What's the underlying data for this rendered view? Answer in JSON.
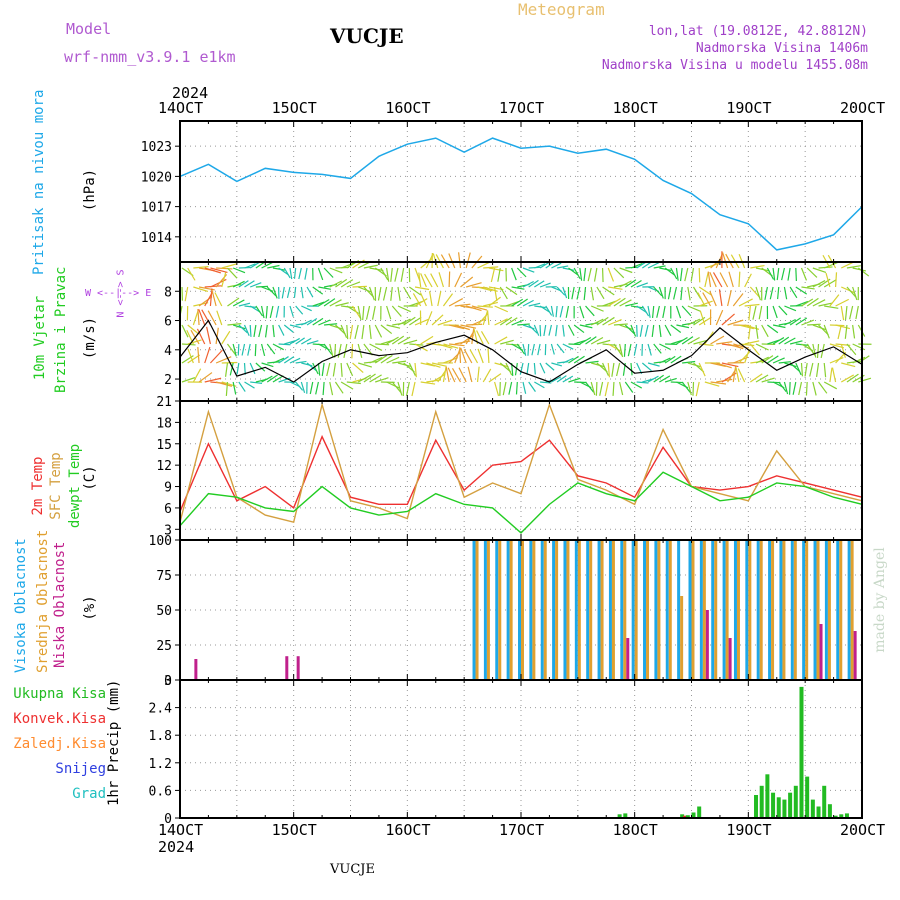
{
  "header": {
    "model_label": "Model",
    "model_name": "wrf-nmm_v3.9.1 e1km",
    "station_title": "VUCJE",
    "meteogram_label": "Meteogram",
    "lonlat": "lon,lat (19.0812E, 42.8812N)",
    "altitude": "Nadmorska Visina 1406m",
    "model_altitude": "Nadmorska Visina u modelu 1455.08m",
    "colors": {
      "model": "#b05ad0",
      "meteogram": "#e8c070",
      "info": "#a040c8"
    }
  },
  "time_axis": {
    "year": "2024",
    "dates": [
      "14OCT",
      "15OCT",
      "16OCT",
      "17OCT",
      "18OCT",
      "19OCT",
      "20OCT"
    ]
  },
  "footer": {
    "station": "VUCJE"
  },
  "watermark": "made by Angel",
  "panels": {
    "pressure": {
      "label": "Pritisak na nivou mora",
      "unit": "(hPa)",
      "color": "#1ea8e8"
    },
    "wind": {
      "label_a": "10m Vjetar",
      "label_b": "Brzina i Pravac",
      "unit": "(m/s)",
      "compass_ns": "N <--> S",
      "compass_we": "W <--|--> E",
      "color": "#22cc22",
      "compass_color": "#b040e0"
    },
    "temp": {
      "label_2m": "2m Temp",
      "label_sfc": "SFC Temp",
      "label_dew": "dewpt Temp",
      "unit": "(C)",
      "colors": {
        "t2m": "#ee3030",
        "sfc": "#d4a040",
        "dew": "#22cc22"
      }
    },
    "cloud": {
      "label_high": "Visoka Oblacnost",
      "label_mid": "Srednja Oblacnost",
      "label_low": "Niska Oblacnost",
      "unit": "(%)",
      "colors": {
        "high": "#1ea8e8",
        "mid": "#e0a030",
        "low": "#c0208c"
      }
    },
    "precip": {
      "unit": "1hr Precip (mm)",
      "legend": [
        {
          "label": "Ukupna Kisa",
          "color": "#22bb22"
        },
        {
          "label": "Konvek.Kisa",
          "color": "#ee3030"
        },
        {
          "label": "Zaledj.Kisa",
          "color": "#ff8c30"
        },
        {
          "label": "Snijeg",
          "color": "#3040e0"
        },
        {
          "label": "Grad",
          "color": "#20c0c0"
        }
      ]
    }
  },
  "chart_data": [
    {
      "type": "line",
      "title": "",
      "ylabel": "Pritisak na nivou mora (hPa)",
      "ylim": [
        1011.5,
        1025.5
      ],
      "yticks": [
        1014,
        1017,
        1020,
        1023
      ],
      "x_days": [
        0,
        0.25,
        0.5,
        0.75,
        1,
        1.25,
        1.5,
        1.75,
        2,
        2.25,
        2.5,
        2.75,
        3,
        3.25,
        3.5,
        3.75,
        4,
        4.25,
        4.5,
        4.75,
        5,
        5.25,
        5.5,
        5.75,
        6
      ],
      "series": [
        {
          "name": "",
          "values": [
            1020.0,
            1021.2,
            1019.5,
            1020.8,
            1020.4,
            1020.2,
            1019.8,
            1022.0,
            1023.2,
            1023.8,
            1022.4,
            1023.8,
            1022.8,
            1023.0,
            1022.3,
            1022.7,
            1021.7,
            1019.6,
            1018.3,
            1016.2,
            1015.3,
            1012.7,
            1013.3,
            1014.2,
            1017.0
          ]
        }
      ]
    },
    {
      "type": "line",
      "title": "",
      "ylabel": "10m Vjetar Brzina i Pravac (m/s)",
      "ylim": [
        0.5,
        10.0
      ],
      "yticks": [
        2,
        4,
        6,
        8
      ],
      "x_days": [
        0,
        0.25,
        0.5,
        0.75,
        1,
        1.25,
        1.5,
        1.75,
        2,
        2.25,
        2.5,
        2.75,
        3,
        3.25,
        3.5,
        3.75,
        4,
        4.25,
        4.5,
        4.75,
        5,
        5.25,
        5.5,
        5.75,
        6
      ],
      "series": [
        {
          "name": "",
          "values": [
            3.5,
            6.0,
            2.2,
            2.8,
            1.8,
            3.2,
            4.0,
            3.6,
            3.8,
            4.5,
            5.0,
            4.0,
            2.5,
            1.8,
            3.0,
            4.0,
            2.4,
            2.6,
            3.6,
            5.5,
            4.0,
            2.6,
            3.5,
            4.2,
            3.0
          ]
        }
      ]
    },
    {
      "type": "line",
      "title": "",
      "ylabel": "(C)",
      "ylim": [
        1.5,
        21.0
      ],
      "yticks": [
        3,
        6,
        9,
        12,
        15,
        18,
        21
      ],
      "x_days": [
        0,
        0.25,
        0.5,
        0.75,
        1,
        1.25,
        1.5,
        1.75,
        2,
        2.25,
        2.5,
        2.75,
        3,
        3.25,
        3.5,
        3.75,
        4,
        4.25,
        4.5,
        4.75,
        5,
        5.25,
        5.5,
        5.75,
        6
      ],
      "series": [
        {
          "name": "2m Temp",
          "values": [
            5.5,
            15.0,
            7.0,
            9.0,
            6.0,
            16.0,
            7.5,
            6.5,
            6.5,
            15.5,
            8.5,
            12.0,
            12.5,
            15.5,
            10.5,
            9.5,
            7.5,
            14.5,
            9.0,
            8.5,
            9.0,
            10.5,
            9.5,
            8.5,
            7.5
          ]
        },
        {
          "name": "SFC Temp",
          "values": [
            4.0,
            19.5,
            7.5,
            5.0,
            4.0,
            20.5,
            7.0,
            6.0,
            4.5,
            19.5,
            7.5,
            9.5,
            8.0,
            20.5,
            10.0,
            8.5,
            6.5,
            17.0,
            9.0,
            8.0,
            7.0,
            14.0,
            9.0,
            8.0,
            7.0
          ]
        },
        {
          "name": "dewpt Temp",
          "values": [
            3.5,
            8.0,
            7.5,
            6.0,
            5.5,
            9.0,
            6.0,
            5.0,
            5.5,
            8.0,
            6.5,
            6.0,
            2.5,
            6.5,
            9.5,
            8.0,
            7.0,
            11.0,
            9.0,
            7.0,
            7.5,
            9.5,
            9.0,
            7.5,
            6.5
          ]
        }
      ]
    },
    {
      "type": "bar",
      "title": "",
      "ylabel": "(%)",
      "ylim": [
        0,
        100
      ],
      "yticks": [
        0,
        25,
        50,
        75,
        100
      ],
      "x_days": [
        0.1,
        0.9,
        1.0,
        2.6,
        2.7,
        2.8,
        2.9,
        3.0,
        3.1,
        3.2,
        3.3,
        3.4,
        3.5,
        3.6,
        3.7,
        3.8,
        3.9,
        4.0,
        4.1,
        4.2,
        4.3,
        4.4,
        4.5,
        4.6,
        4.7,
        4.8,
        4.9,
        5.0,
        5.1,
        5.2,
        5.3,
        5.4,
        5.5,
        5.6,
        5.7,
        5.8,
        5.9
      ],
      "series": [
        {
          "name": "Visoka Oblacnost",
          "values": [
            0,
            0,
            0,
            100,
            100,
            100,
            100,
            100,
            100,
            100,
            100,
            100,
            100,
            100,
            100,
            100,
            100,
            100,
            100,
            100,
            100,
            100,
            100,
            100,
            100,
            100,
            100,
            100,
            100,
            100,
            100,
            100,
            100,
            100,
            100,
            100,
            100
          ]
        },
        {
          "name": "Srednja Oblacnost",
          "values": [
            0,
            0,
            0,
            100,
            100,
            100,
            100,
            100,
            100,
            100,
            100,
            100,
            100,
            100,
            100,
            100,
            100,
            100,
            100,
            100,
            100,
            60,
            100,
            100,
            100,
            100,
            100,
            100,
            100,
            100,
            100,
            100,
            100,
            100,
            100,
            100,
            100
          ]
        },
        {
          "name": "Niska Oblacnost",
          "values": [
            15,
            17,
            17,
            0,
            0,
            0,
            0,
            0,
            0,
            0,
            0,
            0,
            0,
            0,
            0,
            0,
            30,
            0,
            0,
            0,
            0,
            0,
            0,
            50,
            0,
            30,
            0,
            0,
            0,
            0,
            0,
            0,
            0,
            40,
            0,
            0,
            35
          ]
        }
      ]
    },
    {
      "type": "bar",
      "title": "",
      "ylabel": "1hr Precip (mm)",
      "ylim": [
        0,
        3
      ],
      "yticks": [
        0,
        0.6,
        1.2,
        1.8,
        2.4,
        3
      ],
      "x_days": [
        3.85,
        3.9,
        4.4,
        4.45,
        4.5,
        4.55,
        5.05,
        5.1,
        5.15,
        5.2,
        5.25,
        5.3,
        5.35,
        5.4,
        5.45,
        5.5,
        5.55,
        5.6,
        5.65,
        5.7,
        5.75,
        5.8,
        5.85
      ],
      "series": [
        {
          "name": "Ukupna Kisa",
          "values": [
            0.08,
            0.1,
            0.08,
            0.06,
            0.12,
            0.25,
            0.5,
            0.7,
            0.95,
            0.55,
            0.45,
            0.4,
            0.55,
            0.7,
            2.85,
            0.9,
            0.4,
            0.25,
            0.7,
            0.3,
            0.05,
            0.08,
            0.1
          ]
        },
        {
          "name": "Konvek.Kisa",
          "values": [
            0,
            0,
            0.05,
            0,
            0,
            0,
            0,
            0,
            0,
            0,
            0,
            0,
            0,
            0,
            0,
            0,
            0,
            0,
            0,
            0,
            0,
            0,
            0
          ]
        }
      ]
    }
  ]
}
